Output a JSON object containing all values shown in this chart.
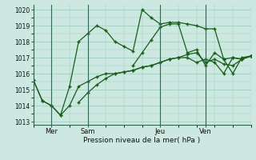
{
  "xlabel": "Pression niveau de la mer( hPa )",
  "ylim": [
    1012.8,
    1020.3
  ],
  "xlim": [
    0,
    24
  ],
  "bg_color": "#cce8e0",
  "grid_color": "#99ccbb",
  "line_color": "#1a5c1a",
  "day_positions": [
    2,
    6,
    14,
    19
  ],
  "day_labels": [
    "Mer",
    "Sam",
    "Jeu",
    "Ven"
  ],
  "yticks": [
    1013,
    1014,
    1015,
    1016,
    1017,
    1018,
    1019,
    1020
  ],
  "line1_x": [
    0,
    1,
    2,
    3,
    4,
    5,
    6,
    7,
    8,
    9,
    10,
    11,
    12,
    13,
    14,
    15,
    16,
    17,
    18,
    19,
    20,
    21,
    22,
    23,
    24
  ],
  "line1_y": [
    1015.6,
    1014.3,
    1014.0,
    1013.4,
    1015.2,
    1018.0,
    1018.5,
    1019.0,
    1018.7,
    1018.0,
    1017.7,
    1017.4,
    1020.0,
    1019.5,
    1019.1,
    1019.2,
    1019.2,
    1019.1,
    1019.0,
    1018.8,
    1018.8,
    1016.9,
    1017.0,
    1016.9,
    1017.1
  ],
  "line2_x": [
    0,
    1,
    2,
    3,
    4,
    5,
    6,
    7,
    8,
    9,
    10,
    11,
    12,
    13,
    14,
    15,
    16,
    17,
    18,
    19,
    20,
    21,
    22,
    23,
    24
  ],
  "line2_y": [
    1015.6,
    1014.3,
    1014.0,
    1013.4,
    1014.0,
    1015.2,
    1015.5,
    1015.8,
    1016.0,
    1016.0,
    1016.1,
    1016.2,
    1016.4,
    1016.5,
    1016.7,
    1016.9,
    1017.0,
    1017.0,
    1016.7,
    1016.9,
    1016.7,
    1016.0,
    1017.0,
    1016.9,
    1017.1
  ],
  "line3_x": [
    5,
    6,
    7,
    8,
    9,
    10,
    11,
    12,
    13,
    14,
    15,
    16,
    17,
    18,
    19,
    20,
    21,
    22,
    23,
    24
  ],
  "line3_y": [
    1014.2,
    1014.8,
    1015.3,
    1015.7,
    1016.0,
    1016.1,
    1016.2,
    1016.4,
    1016.5,
    1016.7,
    1016.9,
    1017.0,
    1017.2,
    1017.3,
    1016.7,
    1016.9,
    1016.6,
    1016.5,
    1016.9,
    1017.1
  ],
  "line4_x": [
    11,
    12,
    13,
    14,
    15,
    16,
    17,
    18,
    19,
    20,
    21,
    22,
    23,
    24
  ],
  "line4_y": [
    1016.5,
    1017.3,
    1018.1,
    1018.9,
    1019.1,
    1019.1,
    1017.3,
    1017.5,
    1016.5,
    1017.3,
    1016.9,
    1016.0,
    1017.0,
    1017.1
  ]
}
